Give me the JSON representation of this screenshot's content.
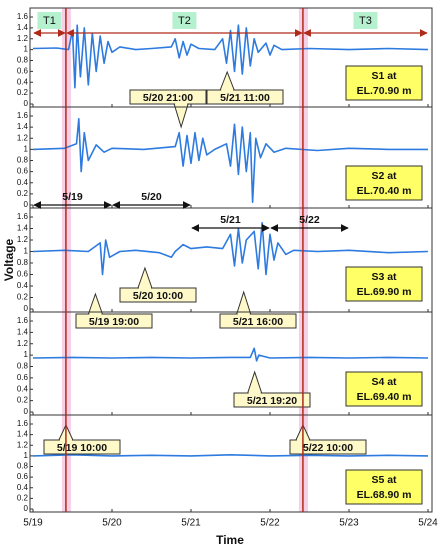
{
  "figure": {
    "ylabel": "Voltage",
    "xlabel": "Time",
    "xlim": [
      19,
      24
    ],
    "xticks": [
      {
        "value": 19,
        "label": "5/19"
      },
      {
        "value": 20,
        "label": "5/20"
      },
      {
        "value": 21,
        "label": "5/21"
      },
      {
        "value": 22,
        "label": "5/22"
      },
      {
        "value": 23,
        "label": "5/23"
      },
      {
        "value": 24,
        "label": "5/24"
      }
    ],
    "events": [
      19.4167,
      22.4167
    ],
    "phases": [
      {
        "label": "T1",
        "start": 19,
        "end": 19.4167
      },
      {
        "label": "T2",
        "start": 19.4167,
        "end": 22.4167
      },
      {
        "label": "T3",
        "start": 22.4167,
        "end": 24
      }
    ],
    "periods": [
      {
        "label": "5/19",
        "start": 19,
        "end": 20
      },
      {
        "label": "5/20",
        "start": 20,
        "end": 21
      },
      {
        "label": "5/21",
        "start": 21,
        "end": 22
      },
      {
        "label": "5/22",
        "start": 22,
        "end": 23
      }
    ]
  },
  "chart_data": [
    {
      "type": "line",
      "label": [
        "S1 at",
        "EL.70.90 m"
      ],
      "color": "#2d7be0",
      "ylim": [
        0,
        1.6
      ],
      "yticks": [
        0,
        0.2,
        0.4,
        0.6,
        0.8,
        1,
        1.2,
        1.4,
        1.6
      ],
      "x": [
        19.0,
        19.3,
        19.45,
        19.5,
        19.53,
        19.56,
        19.6,
        19.65,
        19.7,
        19.75,
        19.8,
        19.85,
        19.9,
        19.95,
        20.0,
        20.1,
        20.3,
        20.5,
        20.75,
        20.8,
        20.85,
        20.9,
        20.95,
        21.0,
        21.1,
        21.3,
        21.4,
        21.45,
        21.5,
        21.55,
        21.6,
        21.65,
        21.7,
        21.75,
        21.8,
        21.85,
        21.95,
        22.0,
        22.05,
        22.15,
        22.5,
        23.0,
        23.5,
        24.0
      ],
      "values": [
        1.02,
        1.03,
        1.0,
        1.35,
        0.3,
        1.45,
        0.5,
        1.4,
        0.35,
        1.3,
        0.6,
        1.25,
        0.75,
        1.15,
        0.95,
        1.05,
        1.0,
        1.02,
        1.05,
        1.2,
        0.85,
        1.15,
        0.9,
        1.1,
        1.02,
        1.0,
        1.2,
        0.75,
        1.35,
        0.6,
        1.45,
        0.55,
        1.4,
        0.7,
        1.2,
        0.95,
        1.12,
        0.9,
        1.08,
        1.0,
        1.02,
        1.0,
        1.02,
        1.0
      ],
      "annotations": [
        {
          "text": "5/20 21:00",
          "x": 20.875
        },
        {
          "text": "5/21 11:00",
          "x": 21.458
        }
      ]
    },
    {
      "type": "line",
      "label": [
        "S2 at",
        "EL.70.40 m"
      ],
      "color": "#2d7be0",
      "ylim": [
        0,
        1.6
      ],
      "yticks": [
        0,
        0.2,
        0.4,
        0.6,
        0.8,
        1,
        1.2,
        1.4,
        1.6
      ],
      "x": [
        19.0,
        19.4,
        19.55,
        19.58,
        19.61,
        19.65,
        19.7,
        19.8,
        19.9,
        20.0,
        20.4,
        20.8,
        20.85,
        20.9,
        20.95,
        21.0,
        21.05,
        21.1,
        21.15,
        21.2,
        21.3,
        21.45,
        21.5,
        21.55,
        21.6,
        21.65,
        21.7,
        21.75,
        21.78,
        21.82,
        21.88,
        21.95,
        22.05,
        22.2,
        22.6,
        23.0,
        23.5,
        24.0
      ],
      "values": [
        1.0,
        1.02,
        1.1,
        1.55,
        0.6,
        1.3,
        0.8,
        1.08,
        0.95,
        1.02,
        1.0,
        1.05,
        1.3,
        0.7,
        1.25,
        0.75,
        1.3,
        0.8,
        1.2,
        0.9,
        1.0,
        1.1,
        0.7,
        1.45,
        0.55,
        1.4,
        0.6,
        1.3,
        0.05,
        1.2,
        0.85,
        1.1,
        0.95,
        1.02,
        0.98,
        1.02,
        1.0,
        1.0
      ],
      "annotations": []
    },
    {
      "type": "line",
      "label": [
        "S3 at",
        "EL.69.90 m"
      ],
      "color": "#2d7be0",
      "ylim": [
        0,
        1.6
      ],
      "yticks": [
        0,
        0.2,
        0.4,
        0.6,
        0.8,
        1,
        1.2,
        1.4,
        1.6
      ],
      "x": [
        19.0,
        19.4,
        19.7,
        19.85,
        19.88,
        19.92,
        19.97,
        20.1,
        20.3,
        20.6,
        20.75,
        20.8,
        20.9,
        21.0,
        21.2,
        21.4,
        21.5,
        21.55,
        21.6,
        21.65,
        21.7,
        21.8,
        21.85,
        21.9,
        21.95,
        22.0,
        22.05,
        22.1,
        22.2,
        22.3,
        22.6,
        23.0,
        23.5,
        24.0
      ],
      "values": [
        1.0,
        1.02,
        1.0,
        1.15,
        0.6,
        1.2,
        0.9,
        1.0,
        1.02,
        0.98,
        0.9,
        1.0,
        1.12,
        1.05,
        1.08,
        1.05,
        1.3,
        0.75,
        1.4,
        0.8,
        1.2,
        1.35,
        0.7,
        1.5,
        0.6,
        1.3,
        0.85,
        1.15,
        0.95,
        1.02,
        1.0,
        1.02,
        0.98,
        1.0
      ],
      "annotations": [
        {
          "text": "5/20 10:00",
          "x": 20.417
        },
        {
          "text": "5/19 19:00",
          "x": 19.79
        },
        {
          "text": "5/21 16:00",
          "x": 21.667
        }
      ]
    },
    {
      "type": "line",
      "label": [
        "S4 at",
        "EL.69.40 m"
      ],
      "color": "#2d7be0",
      "ylim": [
        0,
        1.6
      ],
      "yticks": [
        0,
        0.2,
        0.4,
        0.6,
        0.8,
        1,
        1.2,
        1.4,
        1.6
      ],
      "x": [
        19.0,
        19.5,
        20.0,
        20.5,
        21.0,
        21.5,
        21.75,
        21.8,
        21.83,
        21.86,
        22.0,
        22.5,
        23.0,
        23.5,
        24.0
      ],
      "values": [
        0.95,
        0.96,
        0.95,
        0.96,
        0.95,
        0.96,
        0.96,
        1.12,
        0.9,
        1.0,
        0.95,
        0.96,
        0.95,
        0.96,
        0.95
      ],
      "annotations": [
        {
          "text": "5/21 19:20",
          "x": 21.806
        }
      ]
    },
    {
      "type": "line",
      "label": [
        "S5 at",
        "EL.68.90 m"
      ],
      "color": "#2d7be0",
      "ylim": [
        0,
        1.6
      ],
      "yticks": [
        0,
        0.2,
        0.4,
        0.6,
        0.8,
        1,
        1.2,
        1.4,
        1.6
      ],
      "x": [
        19.0,
        19.5,
        20.0,
        20.5,
        21.0,
        21.5,
        22.0,
        22.5,
        23.0,
        23.5,
        24.0
      ],
      "values": [
        1.0,
        1.02,
        1.0,
        1.01,
        1.0,
        1.02,
        1.0,
        1.01,
        1.0,
        1.01,
        1.0
      ],
      "annotations": [
        {
          "text": "5/19 10:00",
          "x": 19.4167
        },
        {
          "text": "5/22 10:00",
          "x": 22.4167
        }
      ]
    }
  ]
}
